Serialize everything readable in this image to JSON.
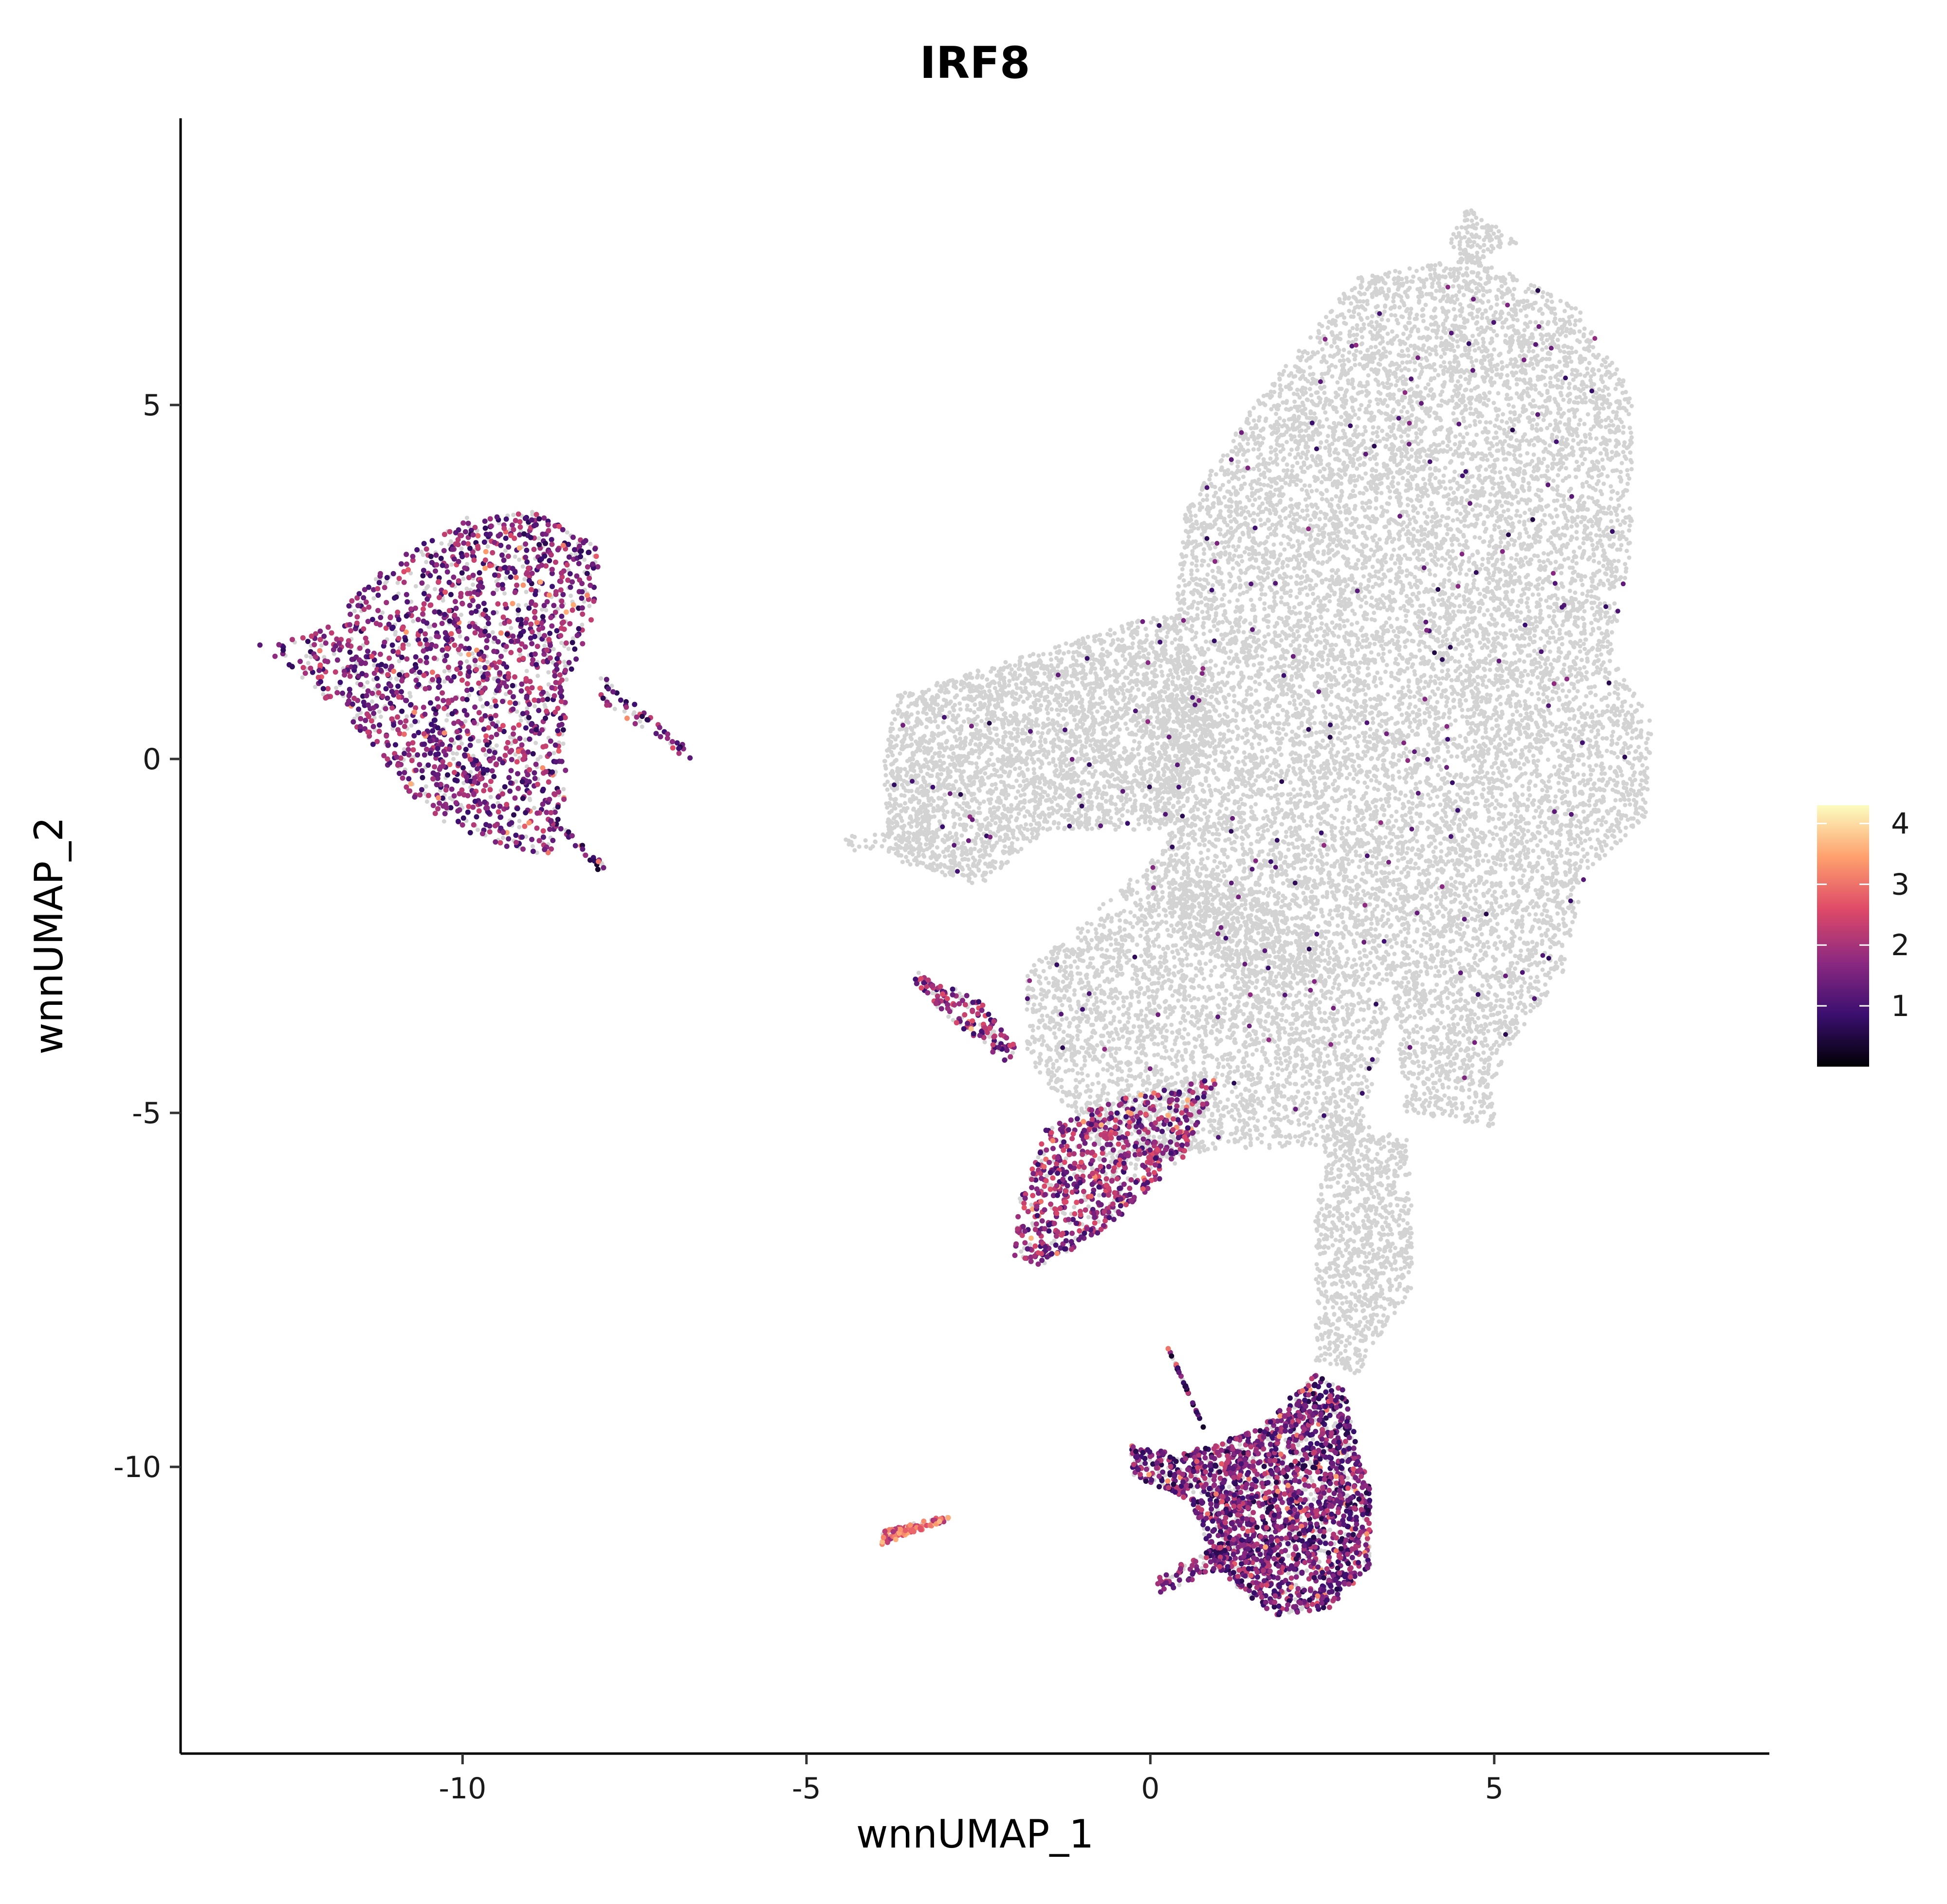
{
  "chart_data": {
    "type": "scatter",
    "title": "IRF8",
    "xlabel": "wnnUMAP_1",
    "ylabel": "wnnUMAP_2",
    "xlim": [
      -14.1,
      9.0
    ],
    "ylim": [
      -14.05,
      9.05
    ],
    "xticks": [
      -10,
      -5,
      0,
      5
    ],
    "yticks": [
      -10,
      -5,
      0,
      5
    ],
    "xtick_labels": [
      "-10",
      "-5",
      "0",
      "5"
    ],
    "ytick_labels": [
      "-10",
      "-5",
      "0",
      "5"
    ],
    "grid": false,
    "legend_position": "right",
    "colorbar": {
      "min": 0,
      "max": 4.3,
      "ticks": [
        1,
        2,
        3,
        4
      ],
      "tick_labels": [
        "1",
        "2",
        "3",
        "4"
      ],
      "colors": [
        "#000004",
        "#3b0f70",
        "#8c2981",
        "#de4968",
        "#fe9f6d",
        "#fcfdbf"
      ]
    },
    "colors": {
      "unexpressed": "#d3d3d3"
    },
    "clusters": [
      {
        "name": "upper-left",
        "role": "expressing",
        "points": [
          [
            -13.0,
            1.6
          ],
          [
            -12.0,
            1.9
          ],
          [
            -11.0,
            2.8
          ],
          [
            -10.0,
            3.4
          ],
          [
            -9.0,
            3.5
          ],
          [
            -8.0,
            3.0
          ],
          [
            -8.1,
            2.0
          ],
          [
            -8.5,
            1.0
          ],
          [
            -8.5,
            -0.5
          ],
          [
            -8.7,
            -1.4
          ],
          [
            -9.5,
            -1.2
          ],
          [
            -10.5,
            -0.8
          ],
          [
            -11.5,
            0.4
          ],
          [
            -12.5,
            1.3
          ]
        ],
        "expr": 1.5,
        "count": 1400
      },
      {
        "name": "upper-left-tail",
        "role": "expressing",
        "points": [
          [
            -8.0,
            1.2
          ],
          [
            -6.6,
            0.05
          ],
          [
            -6.6,
            -0.1
          ],
          [
            -8.0,
            0.8
          ]
        ],
        "expr": 1.4,
        "count": 40
      },
      {
        "name": "upper-left-tail-lower",
        "role": "expressing",
        "points": [
          [
            -8.8,
            -0.8
          ],
          [
            -8.0,
            -1.6
          ],
          [
            -7.9,
            -1.5
          ],
          [
            -8.6,
            -0.9
          ]
        ],
        "expr": 1.0,
        "count": 20
      },
      {
        "name": "main-upper",
        "role": "background",
        "points": [
          [
            1.5,
            5.0
          ],
          [
            3.0,
            6.8
          ],
          [
            4.7,
            7.1
          ],
          [
            6.2,
            6.4
          ],
          [
            7.0,
            5.2
          ],
          [
            7.0,
            3.0
          ],
          [
            6.7,
            1.5
          ],
          [
            7.3,
            0.5
          ],
          [
            7.2,
            -0.8
          ],
          [
            6.3,
            -1.7
          ],
          [
            6.0,
            -3.0
          ],
          [
            5.0,
            -4.5
          ],
          [
            5.0,
            -5.2
          ],
          [
            3.7,
            -5.0
          ],
          [
            3.5,
            -3.2
          ],
          [
            1.8,
            -3.2
          ],
          [
            0.3,
            -2.5
          ],
          [
            0.2,
            0.5
          ],
          [
            0.5,
            3.5
          ]
        ],
        "expr": 0,
        "count": 13000
      },
      {
        "name": "main-top-tip",
        "role": "background",
        "points": [
          [
            4.6,
            7.8
          ],
          [
            5.4,
            7.3
          ],
          [
            4.7,
            7.0
          ],
          [
            4.3,
            7.2
          ]
        ],
        "expr": 0,
        "count": 120
      },
      {
        "name": "middle-left-lobe",
        "role": "background",
        "points": [
          [
            -3.7,
            0.9
          ],
          [
            -2.0,
            1.4
          ],
          [
            0.3,
            2.1
          ],
          [
            1.0,
            0.5
          ],
          [
            0.3,
            -1.0
          ],
          [
            -1.5,
            -1.0
          ],
          [
            -2.5,
            -1.8
          ],
          [
            -3.8,
            -1.4
          ],
          [
            -3.9,
            -0.2
          ]
        ],
        "expr": 0,
        "count": 3500
      },
      {
        "name": "middle-left-streak",
        "role": "background",
        "points": [
          [
            -4.5,
            -1.1
          ],
          [
            -3.2,
            -1.0
          ],
          [
            -3.0,
            -1.3
          ],
          [
            -4.3,
            -1.3
          ]
        ],
        "expr": 0,
        "count": 60
      },
      {
        "name": "central-band",
        "role": "background",
        "points": [
          [
            -1.8,
            -3.0
          ],
          [
            0.3,
            -1.2
          ],
          [
            2.0,
            -2.3
          ],
          [
            3.5,
            -3.5
          ],
          [
            3.0,
            -5.5
          ],
          [
            1.0,
            -5.5
          ],
          [
            -0.5,
            -5.8
          ],
          [
            -1.8,
            -4.2
          ]
        ],
        "expr": 0,
        "count": 3200
      },
      {
        "name": "lower-neck",
        "role": "background",
        "points": [
          [
            2.6,
            -5.0
          ],
          [
            3.8,
            -5.4
          ],
          [
            3.8,
            -7.5
          ],
          [
            3.0,
            -8.7
          ],
          [
            2.4,
            -8.5
          ],
          [
            2.4,
            -6.5
          ]
        ],
        "expr": 0,
        "count": 1000
      },
      {
        "name": "diag-streak",
        "role": "expressing",
        "points": [
          [
            -3.4,
            -3.0
          ],
          [
            -2.5,
            -3.4
          ],
          [
            -1.9,
            -4.1
          ],
          [
            -2.1,
            -4.3
          ],
          [
            -3.0,
            -3.6
          ],
          [
            -3.5,
            -3.1
          ]
        ],
        "expr": 1.7,
        "count": 120
      },
      {
        "name": "mid-lower",
        "role": "expressing",
        "points": [
          [
            -1.5,
            -5.2
          ],
          [
            -0.5,
            -4.8
          ],
          [
            1.0,
            -4.5
          ],
          [
            0.5,
            -5.6
          ],
          [
            -0.6,
            -6.6
          ],
          [
            -1.6,
            -7.2
          ],
          [
            -2.0,
            -7.0
          ],
          [
            -1.9,
            -6.2
          ]
        ],
        "expr": 1.7,
        "count": 650
      },
      {
        "name": "bottom-right",
        "role": "expressing",
        "points": [
          [
            0.5,
            -9.8
          ],
          [
            1.5,
            -9.5
          ],
          [
            2.4,
            -8.7
          ],
          [
            2.8,
            -8.9
          ],
          [
            3.2,
            -10.3
          ],
          [
            3.2,
            -11.4
          ],
          [
            2.6,
            -12.0
          ],
          [
            1.8,
            -12.1
          ],
          [
            1.0,
            -11.5
          ],
          [
            0.6,
            -10.5
          ],
          [
            -0.3,
            -10.1
          ],
          [
            -0.3,
            -9.7
          ]
        ],
        "expr": 1.4,
        "count": 1700
      },
      {
        "name": "bottom-right-streak",
        "role": "expressing",
        "points": [
          [
            0.0,
            -11.6
          ],
          [
            1.0,
            -11.1
          ],
          [
            1.2,
            -11.4
          ],
          [
            0.1,
            -11.8
          ]
        ],
        "expr": 1.5,
        "count": 60
      },
      {
        "name": "bottom-right-spike",
        "role": "expressing",
        "points": [
          [
            0.2,
            -8.2
          ],
          [
            0.7,
            -9.3
          ],
          [
            0.8,
            -9.5
          ],
          [
            0.4,
            -8.6
          ]
        ],
        "expr": 1.0,
        "count": 30
      },
      {
        "name": "bottom-left-small",
        "role": "expressing",
        "points": [
          [
            -3.9,
            -10.9
          ],
          [
            -3.0,
            -10.7
          ],
          [
            -2.8,
            -10.7
          ],
          [
            -3.9,
            -11.1
          ]
        ],
        "expr": 2.8,
        "count": 90
      }
    ]
  }
}
